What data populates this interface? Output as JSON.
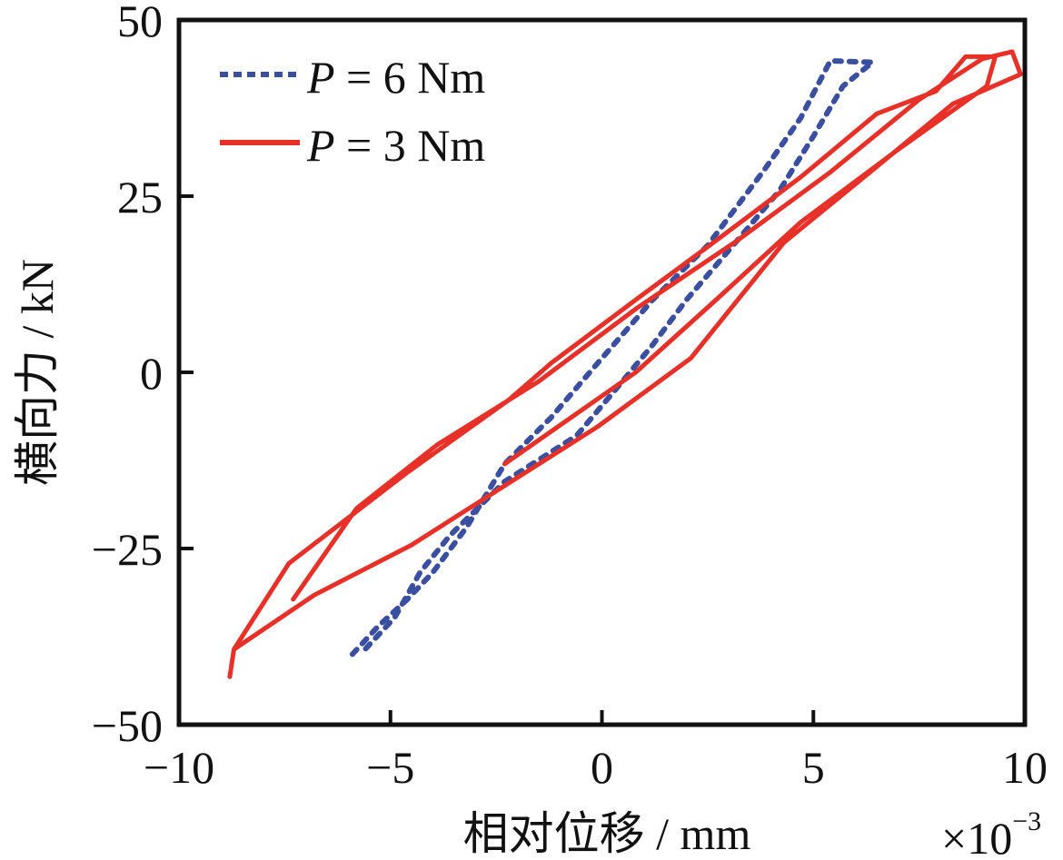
{
  "chart_data": {
    "type": "line",
    "title": "",
    "xlabel": "相对位移 / mm",
    "x_multiplier": "×10",
    "x_multiplier_exp": "−3",
    "ylabel": "横向力 / kN",
    "xlim": [
      -10,
      10
    ],
    "ylim": [
      -50,
      50
    ],
    "xticks": [
      -10,
      -5,
      0,
      5,
      10
    ],
    "xtick_labels": [
      "−10",
      "−5",
      "0",
      "5",
      "10"
    ],
    "yticks": [
      50,
      25,
      0,
      -25,
      -50
    ],
    "ytick_labels": [
      "50",
      "25",
      "0",
      "−25",
      "−50"
    ],
    "grid": false,
    "legend_position": "top-left",
    "series": [
      {
        "name": "P = 6 Nm",
        "name_italic": "P",
        "name_rest": " = 6 Nm",
        "color": "#3B4FA0",
        "style": "dotted",
        "x": [
          -5.9,
          -5.3,
          -4.6,
          -4.0,
          -3.2,
          -2.3,
          -1.2,
          -0.1,
          1.2,
          2.5,
          3.8,
          4.7,
          5.4,
          6.4,
          5.7,
          5.0,
          4.2,
          3.1,
          2.0,
          1.2,
          0.3,
          -0.6,
          -2.3,
          -3.6,
          -4.3,
          -4.9,
          -5.6
        ],
        "y": [
          -40.0,
          -36.1,
          -32.2,
          -28.4,
          -22.0,
          -13.0,
          -6.4,
          1.3,
          10.3,
          18.0,
          28.4,
          36.1,
          44.2,
          44.0,
          40.6,
          33.5,
          25.8,
          18.0,
          10.3,
          3.9,
          -2.6,
          -9.0,
          -15.5,
          -23.2,
          -28.4,
          -34.8,
          -39.3
        ]
      },
      {
        "name": "P = 3 Nm",
        "name_italic": "P",
        "name_rest": " = 3 Nm",
        "color": "#E63028",
        "style": "solid",
        "x": [
          -2.3,
          0.8,
          2.7,
          4.7,
          7.0,
          9.1,
          9.3,
          8.6,
          7.9,
          6.5,
          4.7,
          2.7,
          0.8,
          -1.2,
          -2.2,
          -4.6,
          -7.4,
          -8.7,
          -8.8,
          -8.7,
          -6.8,
          -4.5,
          -2.3,
          -0.1,
          2.1,
          4.3,
          6.4,
          8.3,
          9.9,
          9.7,
          9.0,
          7.5,
          5.4,
          3.2,
          0.8,
          -1.5,
          -3.9,
          -5.8,
          -7.3
        ],
        "y": [
          -13.0,
          0.0,
          10.3,
          21.3,
          31.6,
          40.6,
          44.8,
          44.8,
          39.9,
          36.7,
          27.7,
          18.7,
          10.3,
          1.3,
          -3.9,
          -14.2,
          -27.1,
          -39.3,
          -43.2,
          -39.3,
          -31.6,
          -24.5,
          -16.1,
          -7.7,
          2.0,
          18.4,
          28.7,
          38.1,
          42.3,
          45.5,
          44.5,
          38.7,
          28.4,
          18.7,
          9.0,
          -1.3,
          -10.3,
          -19.3,
          -32.2
        ]
      }
    ]
  }
}
